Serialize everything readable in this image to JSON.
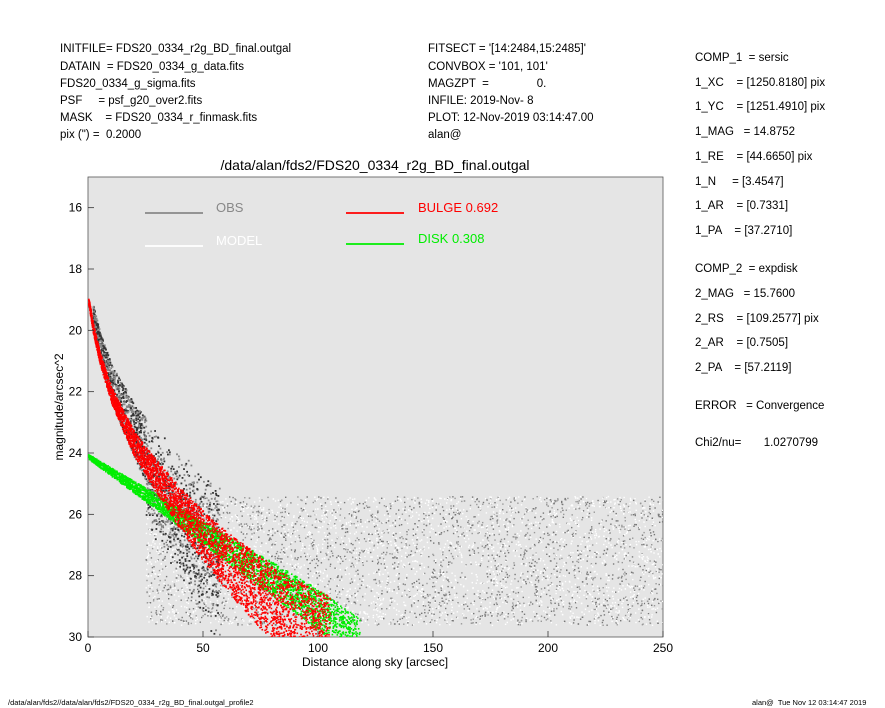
{
  "header_left": [
    "INITFILE= FDS20_0334_r2g_BD_final.outgal",
    "DATAIN  = FDS20_0334_g_data.fits",
    "FDS20_0334_g_sigma.fits",
    "PSF     = psf_g20_over2.fits",
    "MASK    = FDS20_0334_r_finmask.fits",
    "pix (\") =  0.2000"
  ],
  "header_mid": [
    "FITSECT = '[14:2484,15:2485]'",
    "CONVBOX = '101, 101'",
    "MAGZPT  =               0.",
    "INFILE: 2019-Nov- 8",
    "PLOT: 12-Nov-2019 03:14:47.00",
    "alan@"
  ],
  "right_panel": [
    "COMP_1  = sersic",
    "1_XC    = [1250.8180] pix",
    "1_YC    = [1251.4910] pix",
    "1_MAG   = 14.8752",
    "1_RE    = [44.6650] pix",
    "1_N     = [3.4547]",
    "1_AR    = [0.7331]",
    "1_PA    = [37.2710]",
    "COMP_2  = expdisk",
    "2_MAG   = 15.7600",
    "2_RS    = [109.2577] pix",
    "2_AR    = [0.7505]",
    "2_PA    = [57.2119]",
    "ERROR   = Convergence",
    "Chi2/nu=       1.0270799"
  ],
  "footer_left": "/data/alan/fds2//data/alan/fds2/FDS20_0334_r2g_BD_final.outgal_profile2",
  "footer_right": "alan@  Tue Nov 12 03:14:47 2019",
  "chart_data": {
    "type": "scatter",
    "title": "/data/alan/fds2/FDS20_0334_r2g_BD_final.outgal",
    "xlabel": "Distance along sky [arcsec]",
    "ylabel": "magnitude/arcsec^2",
    "xlim": [
      0,
      250
    ],
    "ylim": [
      30,
      15
    ],
    "y_inverted": true,
    "xticks": [
      "0",
      "50",
      "100",
      "150",
      "200",
      "250"
    ],
    "yticks": [
      "16",
      "18",
      "20",
      "22",
      "24",
      "26",
      "28",
      "30"
    ],
    "background": "#e5e5e5",
    "series": [
      {
        "name": "OBS",
        "color": "#888888",
        "legend_label": "OBS"
      },
      {
        "name": "MODEL",
        "color": "#ffffff",
        "legend_label": "MODEL"
      },
      {
        "name": "BULGE",
        "color": "#ff0000",
        "legend_label": "BULGE  0.692",
        "fraction": 0.692,
        "profile": {
          "x": [
            0,
            2,
            5,
            10,
            20,
            30,
            40,
            50,
            60,
            70,
            80,
            90,
            100
          ],
          "y": [
            19.0,
            19.9,
            20.9,
            22.1,
            23.7,
            24.8,
            25.8,
            26.7,
            27.5,
            28.2,
            28.9,
            29.5,
            30.0
          ]
        }
      },
      {
        "name": "DISK",
        "color": "#00ee00",
        "legend_label": "DISK  0.308",
        "fraction": 0.308,
        "profile": {
          "x": [
            0,
            20,
            40,
            60,
            80,
            100,
            115
          ],
          "y": [
            24.1,
            25.1,
            26.1,
            27.1,
            28.1,
            29.1,
            30.0
          ]
        }
      }
    ],
    "sky_level": {
      "x_range": [
        25,
        250
      ],
      "y_range": [
        25.4,
        29.6
      ]
    }
  }
}
